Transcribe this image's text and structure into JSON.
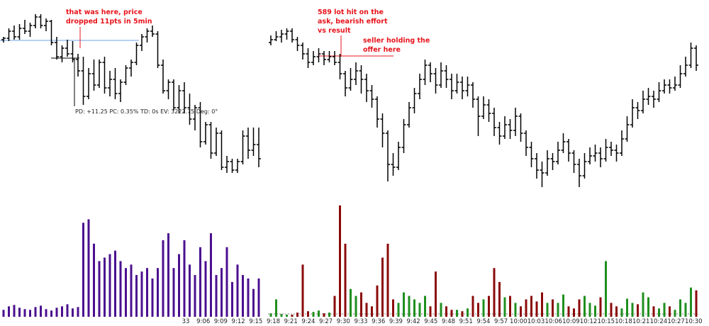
{
  "chart_data": [
    {
      "type": "ohlc",
      "ylim": [
        3196,
        3230
      ],
      "vlim": [
        0,
        1700
      ],
      "bar_color": "#000000",
      "volume_color": "#4b0f8f",
      "ohlc": [
        [
          3223,
          3223.5,
          3222.5,
          3223.25
        ],
        [
          3223.25,
          3225,
          3222.75,
          3224.5
        ],
        [
          3224.5,
          3225.5,
          3223,
          3223.5
        ],
        [
          3223.5,
          3225.75,
          3223,
          3225
        ],
        [
          3225,
          3226.5,
          3224,
          3224.5
        ],
        [
          3224.5,
          3226,
          3223.5,
          3225.5
        ],
        [
          3225.5,
          3227.5,
          3225,
          3227
        ],
        [
          3227,
          3227.5,
          3225,
          3225.5
        ],
        [
          3225.5,
          3226.75,
          3224.5,
          3226.25
        ],
        [
          3226.25,
          3226.5,
          3222,
          3222.5
        ],
        [
          3222.5,
          3223.5,
          3219.5,
          3220
        ],
        [
          3220,
          3222,
          3219,
          3221.5
        ],
        [
          3221.5,
          3223,
          3220,
          3220.5
        ],
        [
          3220.5,
          3222.75,
          3219,
          3219.5
        ],
        [
          3219.5,
          3220.5,
          3216.5,
          3217.5
        ],
        [
          3217.5,
          3220,
          3211.5,
          3213
        ],
        [
          3213,
          3218,
          3212.5,
          3217
        ],
        [
          3217,
          3219.5,
          3214,
          3215
        ],
        [
          3215,
          3219.5,
          3214.5,
          3219
        ],
        [
          3219,
          3220,
          3213.5,
          3214.5
        ],
        [
          3214.5,
          3217.5,
          3213,
          3216
        ],
        [
          3216,
          3218,
          3212.5,
          3213.5
        ],
        [
          3213.5,
          3216,
          3212,
          3215.5
        ],
        [
          3215.5,
          3218.5,
          3215,
          3218
        ],
        [
          3218,
          3219.5,
          3216.5,
          3219
        ],
        [
          3219,
          3222.5,
          3218.5,
          3222
        ],
        [
          3222,
          3224,
          3221,
          3223.5
        ],
        [
          3223.5,
          3225,
          3222.5,
          3224.5
        ],
        [
          3224.5,
          3225.5,
          3223.5,
          3224
        ],
        [
          3224,
          3224.5,
          3218,
          3218.5
        ],
        [
          3218.5,
          3219.5,
          3213.5,
          3214
        ],
        [
          3214,
          3216,
          3212.5,
          3215.5
        ],
        [
          3215.5,
          3216,
          3210.5,
          3211
        ],
        [
          3211,
          3215,
          3210,
          3214
        ],
        [
          3214,
          3215.5,
          3210,
          3211
        ],
        [
          3211,
          3213.5,
          3208,
          3209
        ],
        [
          3209,
          3211.5,
          3207,
          3211
        ],
        [
          3211,
          3212,
          3204,
          3205
        ],
        [
          3205,
          3208.5,
          3204.5,
          3208
        ],
        [
          3208,
          3208.5,
          3202,
          3203
        ],
        [
          3203,
          3207.5,
          3202.5,
          3206.5
        ],
        [
          3206.5,
          3207,
          3200,
          3200.5
        ],
        [
          3200.5,
          3202.5,
          3199.5,
          3201.5
        ],
        [
          3201.5,
          3202,
          3199.5,
          3200
        ],
        [
          3200,
          3202,
          3199.5,
          3201.5
        ],
        [
          3201.5,
          3207,
          3201,
          3206
        ],
        [
          3206,
          3207.5,
          3202,
          3203.5
        ],
        [
          3203.5,
          3207.5,
          3202.5,
          3204.5
        ],
        [
          3204.5,
          3207.5,
          3200.5,
          3202
        ]
      ],
      "volume": [
        100,
        150,
        170,
        130,
        110,
        100,
        140,
        160,
        110,
        90,
        130,
        150,
        180,
        120,
        140,
        1350,
        1400,
        1050,
        800,
        850,
        900,
        950,
        800,
        700,
        750,
        600,
        650,
        700,
        550,
        700,
        1100,
        1200,
        700,
        900,
        1100,
        750,
        600,
        1000,
        800,
        1200,
        600,
        700,
        1000,
        500,
        750,
        600,
        550,
        400,
        550
      ]
    },
    {
      "type": "ohlc",
      "ylim": [
        3196,
        3230
      ],
      "vlim": [
        0,
        1700
      ],
      "bar_color": "#000000",
      "up_color": "#1f8f1f",
      "down_color": "#8b0a0a",
      "ohlc": [
        [
          3222.5,
          3223.75,
          3222,
          3223
        ],
        [
          3223,
          3224.5,
          3222.75,
          3223.5
        ],
        [
          3223.5,
          3224.75,
          3222.5,
          3224
        ],
        [
          3224,
          3225,
          3223,
          3224.5
        ],
        [
          3224.5,
          3225,
          3222.5,
          3223
        ],
        [
          3223,
          3223.5,
          3221,
          3222
        ],
        [
          3222,
          3222.5,
          3219.5,
          3220.5
        ],
        [
          3220.5,
          3221.5,
          3218,
          3219
        ],
        [
          3219,
          3221,
          3218.5,
          3220
        ],
        [
          3220,
          3221.5,
          3219,
          3220.5
        ],
        [
          3220.5,
          3221,
          3218.5,
          3219.5
        ],
        [
          3219.5,
          3221,
          3219,
          3220
        ],
        [
          3220,
          3221,
          3218.5,
          3219
        ],
        [
          3219,
          3220.5,
          3216,
          3217
        ],
        [
          3217,
          3217.5,
          3213,
          3214.5
        ],
        [
          3214.5,
          3218,
          3214,
          3216
        ],
        [
          3216,
          3219,
          3215,
          3217.5
        ],
        [
          3217.5,
          3218.5,
          3213.5,
          3216
        ],
        [
          3216,
          3217,
          3212,
          3214
        ],
        [
          3214,
          3215,
          3211,
          3212.5
        ],
        [
          3212.5,
          3213,
          3207.5,
          3209
        ],
        [
          3209,
          3210,
          3204,
          3206.5
        ],
        [
          3206.5,
          3207,
          3198,
          3201
        ],
        [
          3201,
          3203,
          3199,
          3200.5
        ],
        [
          3200.5,
          3205,
          3200,
          3204
        ],
        [
          3204,
          3209,
          3203,
          3208
        ],
        [
          3208,
          3212,
          3207.5,
          3211
        ],
        [
          3211,
          3214.5,
          3210,
          3213.5
        ],
        [
          3213.5,
          3217,
          3212.5,
          3216
        ],
        [
          3216,
          3219.5,
          3215,
          3218.5
        ],
        [
          3218.5,
          3219,
          3215.5,
          3217
        ],
        [
          3217,
          3218,
          3213.5,
          3215
        ],
        [
          3215,
          3219,
          3214.5,
          3217.5
        ],
        [
          3217.5,
          3218.5,
          3214.5,
          3216
        ],
        [
          3216,
          3217,
          3212.5,
          3214
        ],
        [
          3214,
          3217,
          3213.5,
          3215.5
        ],
        [
          3215.5,
          3216.5,
          3212.5,
          3214
        ],
        [
          3214,
          3216.5,
          3213,
          3215
        ],
        [
          3215,
          3215.5,
          3211,
          3212.5
        ],
        [
          3212.5,
          3213,
          3206,
          3209.5
        ],
        [
          3209.5,
          3213,
          3209,
          3211.5
        ],
        [
          3211.5,
          3212.5,
          3208.5,
          3210
        ],
        [
          3210,
          3211,
          3206,
          3207.5
        ],
        [
          3207.5,
          3208.5,
          3204.5,
          3206
        ],
        [
          3206,
          3209.5,
          3205.5,
          3208
        ],
        [
          3208,
          3209,
          3205.5,
          3207
        ],
        [
          3207,
          3211,
          3206,
          3209.5
        ],
        [
          3209.5,
          3210,
          3205,
          3206.5
        ],
        [
          3206.5,
          3207,
          3202.5,
          3204
        ],
        [
          3204,
          3205,
          3200.5,
          3202
        ],
        [
          3202,
          3203,
          3198.5,
          3200
        ],
        [
          3200,
          3201.5,
          3197,
          3199.5
        ],
        [
          3199.5,
          3203.5,
          3199,
          3202
        ],
        [
          3202,
          3203,
          3200,
          3201.5
        ],
        [
          3201.5,
          3205,
          3201,
          3203.5
        ],
        [
          3203.5,
          3206.5,
          3203,
          3205
        ],
        [
          3205,
          3205.5,
          3201.5,
          3203
        ],
        [
          3203,
          3203.5,
          3199.5,
          3201
        ],
        [
          3201,
          3202,
          3197,
          3199
        ],
        [
          3199,
          3203,
          3198.5,
          3201.5
        ],
        [
          3201.5,
          3204,
          3201,
          3202.5
        ],
        [
          3202.5,
          3204.5,
          3201.5,
          3203
        ],
        [
          3203,
          3204,
          3200.5,
          3202
        ],
        [
          3202,
          3205.5,
          3201.5,
          3204
        ],
        [
          3204,
          3205,
          3202.5,
          3203.5
        ],
        [
          3203.5,
          3204.5,
          3201.5,
          3203
        ],
        [
          3203,
          3207,
          3202.5,
          3205.5
        ],
        [
          3205.5,
          3209.5,
          3205,
          3208
        ],
        [
          3208,
          3212.5,
          3207.5,
          3211
        ],
        [
          3211,
          3212,
          3209,
          3210.5
        ],
        [
          3210.5,
          3214,
          3210,
          3212.5
        ],
        [
          3212.5,
          3214.5,
          3211.5,
          3213
        ],
        [
          3213,
          3214,
          3211,
          3212.5
        ],
        [
          3212.5,
          3215.5,
          3212,
          3214
        ],
        [
          3214,
          3216,
          3213.5,
          3215
        ],
        [
          3215,
          3216,
          3213.5,
          3214.5
        ],
        [
          3214.5,
          3216.5,
          3214,
          3215
        ],
        [
          3215,
          3218.5,
          3214.5,
          3217
        ],
        [
          3217,
          3220,
          3216.5,
          3218.5
        ],
        [
          3218.5,
          3222.5,
          3218,
          3221.5
        ],
        [
          3221.5,
          3222,
          3217.5,
          3218.5
        ]
      ],
      "volume": [
        50,
        250,
        40,
        30,
        30,
        60,
        750,
        80,
        70,
        90,
        50,
        60,
        300,
        1600,
        1050,
        400,
        300,
        350,
        200,
        150,
        450,
        850,
        1050,
        250,
        200,
        350,
        300,
        250,
        200,
        300,
        150,
        650,
        200,
        150,
        100,
        100,
        80,
        120,
        300,
        200,
        250,
        300,
        700,
        500,
        280,
        300,
        200,
        150,
        250,
        300,
        220,
        350,
        200,
        250,
        200,
        320,
        150,
        120,
        250,
        300,
        200,
        160,
        280,
        800,
        200,
        150,
        120,
        260,
        200,
        180,
        350,
        280,
        150,
        120,
        200,
        150,
        100,
        250,
        200,
        420,
        380
      ]
    }
  ],
  "time_labels": [
    "33",
    "9:06",
    "9:09",
    "9:12",
    "9:15",
    "9:18",
    "9:21",
    "9:24",
    "9:27",
    "9:30",
    "9:33",
    "9:36",
    "9:39",
    "9:42",
    "9:45",
    "9:48",
    "9:51",
    "9:54",
    "9:57",
    "10:00",
    "10:03",
    "10:06",
    "10:09",
    "10:12",
    "10:15",
    "10:18",
    "10:21",
    "10:24",
    "10:27",
    "10:30"
  ],
  "annotations": [
    {
      "lines": [
        "that was here, price",
        "dropped 11pts in 5min"
      ]
    },
    {
      "lines": [
        "589 lot hit on the",
        "ask, bearish effort",
        "vs result"
      ]
    },
    {
      "lines": [
        "seller holding the",
        "offer here"
      ]
    }
  ],
  "measure": "PD: +11.25  PC: 0.35%  TD: 0s  EV: 3222.75  Deg: 0°"
}
